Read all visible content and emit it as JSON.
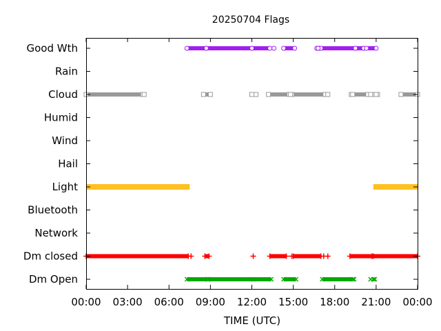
{
  "chart_data": {
    "type": "timeline",
    "title": "20250704 Flags",
    "xlabel": "TIME (UTC)",
    "x_unit": "hours",
    "xlim": [
      0,
      24
    ],
    "x_ticks": [
      {
        "value": 0,
        "label": "00:00"
      },
      {
        "value": 3,
        "label": "03:00"
      },
      {
        "value": 6,
        "label": "06:00"
      },
      {
        "value": 9,
        "label": "09:00"
      },
      {
        "value": 12,
        "label": "12:00"
      },
      {
        "value": 15,
        "label": "15:00"
      },
      {
        "value": 18,
        "label": "18:00"
      },
      {
        "value": 21,
        "label": "21:00"
      },
      {
        "value": 24,
        "label": "00:00"
      }
    ],
    "grid": false,
    "series": [
      {
        "name": "Good Wth",
        "color": "#a020f0",
        "marker": "circle",
        "intervals": [
          [
            7.3,
            8.7
          ],
          [
            8.7,
            12.0
          ],
          [
            12.0,
            13.3
          ],
          [
            14.3,
            15.1
          ],
          [
            16.7,
            16.9
          ],
          [
            17.0,
            19.5
          ],
          [
            19.5,
            20.1
          ],
          [
            20.1,
            21.0
          ]
        ],
        "points": [
          13.6,
          16.8,
          20.3
        ]
      },
      {
        "name": "Rain",
        "color": "#000000",
        "marker": "none",
        "intervals": [],
        "points": []
      },
      {
        "name": "Cloud",
        "color": "#999999",
        "marker": "square",
        "intervals": [
          [
            0.0,
            4.1
          ],
          [
            8.5,
            9.0
          ],
          [
            12.0,
            12.3
          ],
          [
            13.2,
            14.7
          ],
          [
            14.9,
            17.3
          ],
          [
            17.3,
            17.5
          ],
          [
            19.2,
            20.4
          ],
          [
            20.7,
            21.1
          ],
          [
            22.8,
            24.0
          ]
        ],
        "points": [
          4.2,
          14.8,
          19.3,
          20.6,
          21.0
        ]
      },
      {
        "name": "Humid",
        "color": "#000000",
        "marker": "none",
        "intervals": [],
        "points": []
      },
      {
        "name": "Wind",
        "color": "#000000",
        "marker": "none",
        "intervals": [],
        "points": []
      },
      {
        "name": "Hail",
        "color": "#000000",
        "marker": "none",
        "intervals": [],
        "points": []
      },
      {
        "name": "Light",
        "color": "#ffc020",
        "marker": "none",
        "intervals": [
          [
            0.0,
            7.5
          ],
          [
            20.8,
            24.0
          ]
        ],
        "points": []
      },
      {
        "name": "Bluetooth",
        "color": "#000000",
        "marker": "none",
        "intervals": [],
        "points": []
      },
      {
        "name": "Network",
        "color": "#000000",
        "marker": "none",
        "intervals": [],
        "points": []
      },
      {
        "name": "Dm closed",
        "color": "#ff0000",
        "marker": "plus",
        "intervals": [
          [
            0.0,
            7.4
          ],
          [
            8.6,
            8.9
          ],
          [
            13.3,
            14.5
          ],
          [
            15.0,
            17.0
          ],
          [
            19.1,
            20.7
          ],
          [
            20.7,
            24.0
          ]
        ],
        "points": [
          7.6,
          12.1,
          14.9,
          17.2,
          17.5,
          20.8
        ]
      },
      {
        "name": "Dm Open",
        "color": "#00aa00",
        "marker": "cross",
        "intervals": [
          [
            7.3,
            8.8
          ],
          [
            8.8,
            13.4
          ],
          [
            14.3,
            15.2
          ],
          [
            17.1,
            19.3
          ]
        ],
        "points": [
          8.85,
          12.1,
          19.4,
          20.6,
          20.8,
          20.9
        ]
      }
    ]
  }
}
